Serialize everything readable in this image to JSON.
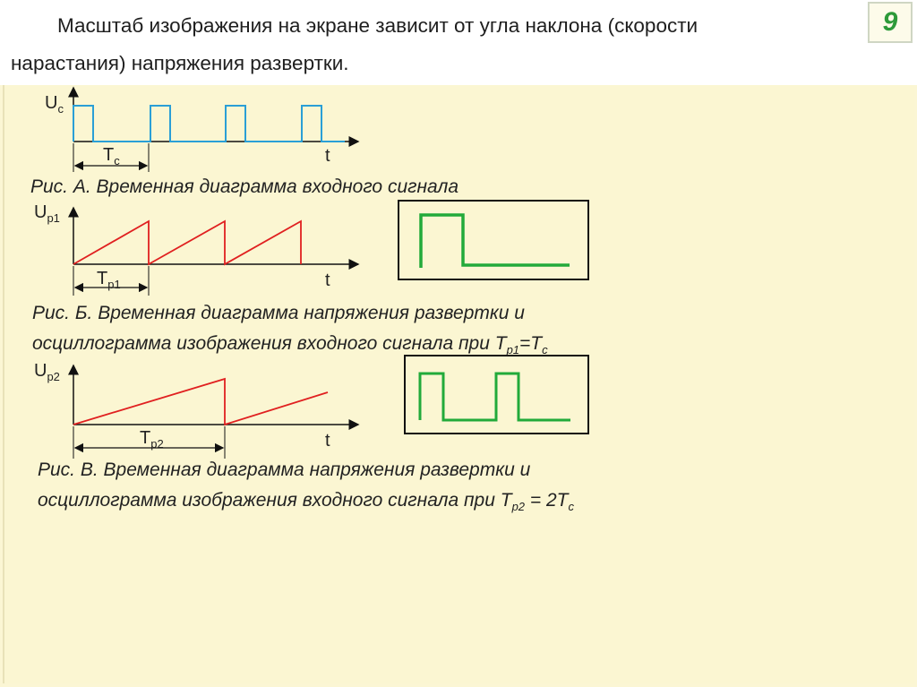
{
  "title": "Масштаб изображения на экране зависит от угла наклона (скорости нарастания) напряжения развертки.",
  "page_number": "9",
  "colors": {
    "background": "#fbf6d2",
    "input_signal": "#2a9fd6",
    "sweep": "#e02020",
    "screen_trace": "#22aa3a",
    "axes": "#111111"
  },
  "fig_a": {
    "y_label": "U",
    "y_sub": "c",
    "x_label": "t",
    "period_label": "T",
    "period_sub": "c",
    "caption": "Рис. А. Временная диаграмма  входного сигнала"
  },
  "fig_b": {
    "y_label": "U",
    "y_sub": "р1",
    "x_label": "t",
    "period_label": "T",
    "period_sub": "р1",
    "caption_line1": "Рис. Б. Временная диаграмма  напряжения развертки и",
    "caption_line2_pre": "осциллограмма изображения входного сигнала при T",
    "caption_line2_sub1": "р1",
    "caption_line2_mid": "=T",
    "caption_line2_sub2": "c"
  },
  "fig_c": {
    "y_label": "U",
    "y_sub": "р2",
    "x_label": "t",
    "period_label": "T",
    "period_sub": "р2",
    "caption_line1": "Рис. В. Временная диаграмма напряжения развертки и",
    "caption_line2_pre": "осциллограмма изображения входного сигнала при T",
    "caption_line2_sub1": "р2",
    "caption_line2_mid": " = 2T",
    "caption_line2_sub2": "c"
  }
}
